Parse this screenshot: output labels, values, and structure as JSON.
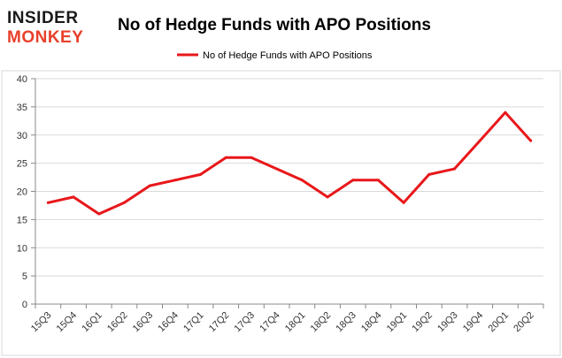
{
  "logo": {
    "line1": "INSIDER",
    "line2": "MONKEY"
  },
  "chart_data": {
    "type": "line",
    "title": "No of Hedge Funds with APO Positions",
    "xlabel": "",
    "ylabel": "",
    "categories": [
      "15Q3",
      "15Q4",
      "16Q1",
      "16Q2",
      "16Q3",
      "16Q4",
      "17Q1",
      "17Q2",
      "17Q3",
      "17Q4",
      "18Q1",
      "18Q2",
      "18Q3",
      "18Q4",
      "19Q1",
      "19Q2",
      "19Q3",
      "19Q4",
      "20Q1",
      "20Q2"
    ],
    "series": [
      {
        "name": "No of Hedge Funds with APO Positions",
        "values": [
          18,
          19,
          16,
          18,
          21,
          22,
          23,
          26,
          26,
          24,
          22,
          19,
          22,
          22,
          18,
          23,
          24,
          29,
          34,
          29
        ],
        "color": "#e8171a"
      }
    ],
    "yticks": [
      0,
      5,
      10,
      15,
      20,
      25,
      30,
      35,
      40
    ],
    "ylim": [
      0,
      40
    ],
    "grid": true,
    "legend": "top-center"
  }
}
